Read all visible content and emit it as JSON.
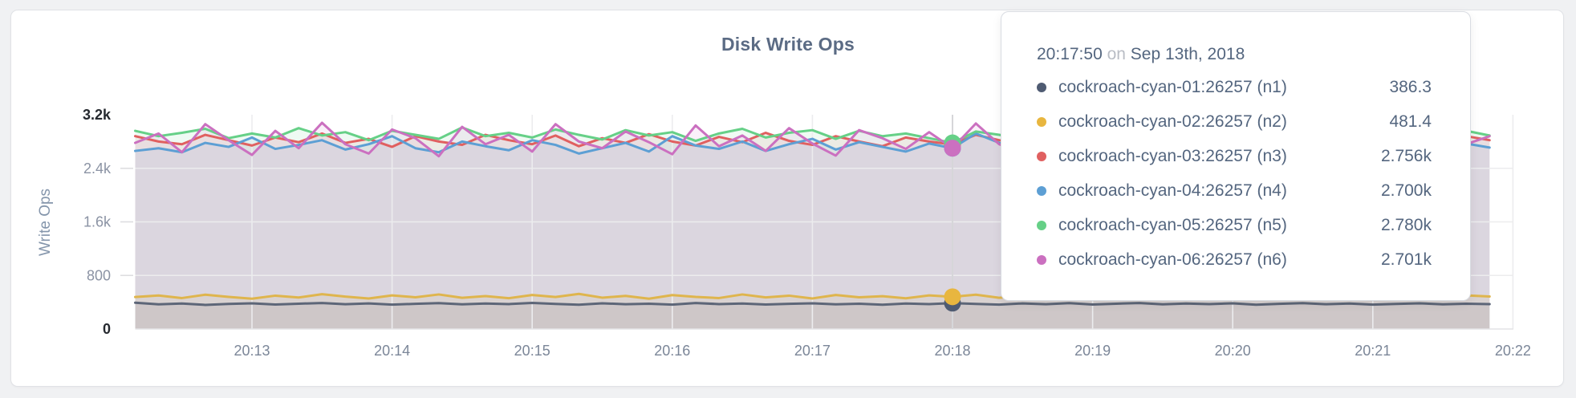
{
  "tooltip": {
    "time": "20:17:50",
    "on_word": "on",
    "date": "Sep 13th, 2018"
  },
  "chart_data": {
    "type": "line",
    "title": "Disk Write Ops",
    "ylabel": "Write Ops",
    "ylim": [
      0,
      3200
    ],
    "grid": true,
    "y_ticks": [
      {
        "v": 0,
        "label": "0",
        "emphasized": true
      },
      {
        "v": 800,
        "label": "800",
        "emphasized": false
      },
      {
        "v": 1600,
        "label": "1.6k",
        "emphasized": false
      },
      {
        "v": 2400,
        "label": "2.4k",
        "emphasized": false
      },
      {
        "v": 3200,
        "label": "3.2k",
        "emphasized": true
      }
    ],
    "x_ticks": [
      "20:13",
      "20:14",
      "20:15",
      "20:16",
      "20:17",
      "20:18",
      "20:19",
      "20:20",
      "20:21",
      "20:22"
    ],
    "x_step_seconds": 10,
    "hover": {
      "index": 35,
      "time_label": "20:17:50"
    },
    "series": [
      {
        "name": "cockroach-cyan-01:26257 (n1)",
        "color": "#4f5b72",
        "line_color": "#5d6678",
        "hover_display": "386.3",
        "values": [
          392,
          368,
          380,
          360,
          375,
          384,
          366,
          378,
          388,
          370,
          382,
          364,
          376,
          386,
          368,
          380,
          372,
          390,
          374,
          362,
          384,
          370,
          378,
          364,
          388,
          372,
          380,
          366,
          376,
          384,
          368,
          378,
          362,
          380,
          372,
          386.3,
          374,
          364,
          382,
          370,
          386,
          366,
          378,
          388,
          368,
          380,
          372,
          384,
          362,
          376,
          386,
          370,
          380,
          364,
          374,
          384,
          368,
          378,
          372
        ]
      },
      {
        "name": "cockroach-cyan-02:26257 (n2)",
        "color": "#e8b63f",
        "line_color": "#dfb54d",
        "hover_display": "481.4",
        "values": [
          478,
          500,
          462,
          512,
          480,
          452,
          498,
          470,
          520,
          484,
          456,
          502,
          474,
          516,
          466,
          492,
          460,
          508,
          478,
          524,
          468,
          494,
          452,
          506,
          480,
          462,
          516,
          472,
          498,
          456,
          508,
          474,
          490,
          458,
          502,
          481.4,
          512,
          466,
          496,
          524,
          470,
          454,
          500,
          478,
          516,
          462,
          490,
          456,
          506,
          472,
          520,
          464,
          494,
          452,
          510,
          478,
          462,
          502,
          486
        ]
      },
      {
        "name": "cockroach-cyan-03:26257 (n3)",
        "color": "#e06060",
        "line_color": "#e06060",
        "hover_display": "2.756k",
        "values": [
          2880,
          2800,
          2760,
          2900,
          2820,
          2740,
          2860,
          2790,
          2920,
          2780,
          2840,
          2720,
          2880,
          2800,
          2750,
          2900,
          2820,
          2760,
          2890,
          2730,
          2850,
          2780,
          2910,
          2800,
          2740,
          2870,
          2790,
          2930,
          2810,
          2750,
          2880,
          2800,
          2730,
          2860,
          2800,
          2756,
          2900,
          2820,
          2750,
          2890,
          2770,
          2930,
          2790,
          2740,
          2870,
          2810,
          2750,
          2900,
          2830,
          2760,
          2890,
          2720,
          2850,
          2780,
          2910,
          2800,
          2740,
          2880,
          2820
        ]
      },
      {
        "name": "cockroach-cyan-04:26257 (n4)",
        "color": "#5d9fd4",
        "line_color": "#5d9fd4",
        "hover_display": "2.700k",
        "values": [
          2660,
          2700,
          2640,
          2780,
          2720,
          2860,
          2690,
          2750,
          2820,
          2680,
          2760,
          2880,
          2700,
          2640,
          2800,
          2730,
          2670,
          2820,
          2750,
          2620,
          2700,
          2780,
          2650,
          2880,
          2740,
          2690,
          2800,
          2660,
          2760,
          2840,
          2680,
          2790,
          2720,
          2650,
          2770,
          2700,
          2920,
          2780,
          2690,
          2850,
          2730,
          2660,
          2810,
          2750,
          2870,
          2700,
          2640,
          2790,
          2730,
          2850,
          2690,
          2760,
          2640,
          2800,
          2720,
          2860,
          2700,
          2770,
          2710
        ]
      },
      {
        "name": "cockroach-cyan-05:26257 (n5)",
        "color": "#66d087",
        "line_color": "#66d087",
        "hover_display": "2.780k",
        "values": [
          2960,
          2880,
          2930,
          2990,
          2850,
          2920,
          2860,
          3000,
          2890,
          2940,
          2820,
          2960,
          2900,
          2840,
          3010,
          2880,
          2930,
          2860,
          2980,
          2900,
          2830,
          2970,
          2890,
          2940,
          2810,
          2920,
          2990,
          2860,
          2930,
          2970,
          2840,
          2960,
          2880,
          2920,
          2850,
          2780,
          2950,
          2900,
          2830,
          2980,
          2890,
          2840,
          3000,
          2870,
          2930,
          2890,
          2960,
          2820,
          2940,
          2880,
          3010,
          2860,
          2920,
          2840,
          2980,
          2900,
          2850,
          2960,
          2890
        ]
      },
      {
        "name": "cockroach-cyan-06:26257 (n6)",
        "color": "#cb70c0",
        "line_color": "#cb70c0",
        "hover_display": "2.701k",
        "values": [
          2780,
          2920,
          2640,
          3060,
          2820,
          2600,
          2960,
          2700,
          3080,
          2760,
          2620,
          2980,
          2850,
          2580,
          3020,
          2760,
          2900,
          2650,
          3060,
          2800,
          2700,
          2950,
          2790,
          2610,
          3040,
          2730,
          2890,
          2660,
          3000,
          2770,
          2590,
          2970,
          2850,
          2690,
          2940,
          2701,
          3070,
          2760,
          2620,
          2980,
          2810,
          2650,
          3050,
          2770,
          2900,
          2710,
          2580,
          3000,
          2850,
          2660,
          2960,
          2780,
          2700,
          3060,
          2820,
          2610,
          2950,
          2760,
          2880
        ]
      }
    ]
  }
}
